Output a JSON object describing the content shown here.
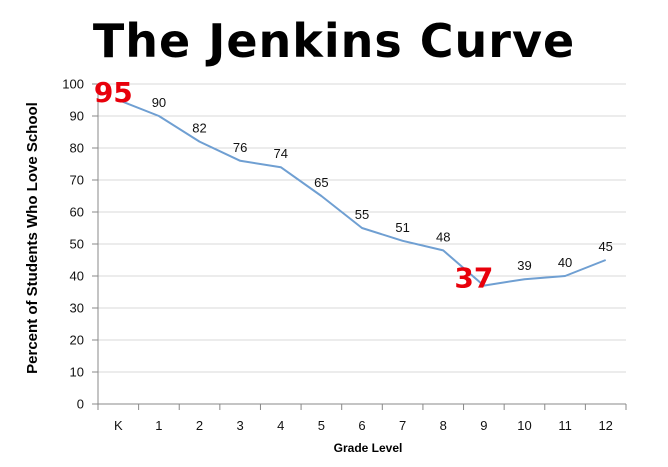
{
  "chart_data": {
    "type": "line",
    "title": "The Jenkins Curve",
    "xlabel": "Grade Level",
    "ylabel": "Percent of Students Who Love School",
    "categories": [
      "K",
      "1",
      "2",
      "3",
      "4",
      "5",
      "6",
      "7",
      "8",
      "9",
      "10",
      "11",
      "12"
    ],
    "series": [
      {
        "values": [
          95,
          90,
          82,
          76,
          74,
          65,
          55,
          51,
          48,
          37,
          39,
          40,
          45
        ]
      }
    ],
    "data_labels": [
      "95",
      "90",
      "82",
      "76",
      "74",
      "65",
      "55",
      "51",
      "48",
      "37",
      "39",
      "40",
      "45"
    ],
    "highlighted_indices": [
      0,
      9
    ],
    "ylim": [
      0,
      100
    ],
    "yticks": [
      0,
      10,
      20,
      30,
      40,
      50,
      60,
      70,
      80,
      90,
      100
    ],
    "grid": true,
    "legend": "none",
    "colors": {
      "line": "#6f9fd2",
      "highlight": "#e8000b",
      "grid": "#d9d9d9"
    }
  }
}
